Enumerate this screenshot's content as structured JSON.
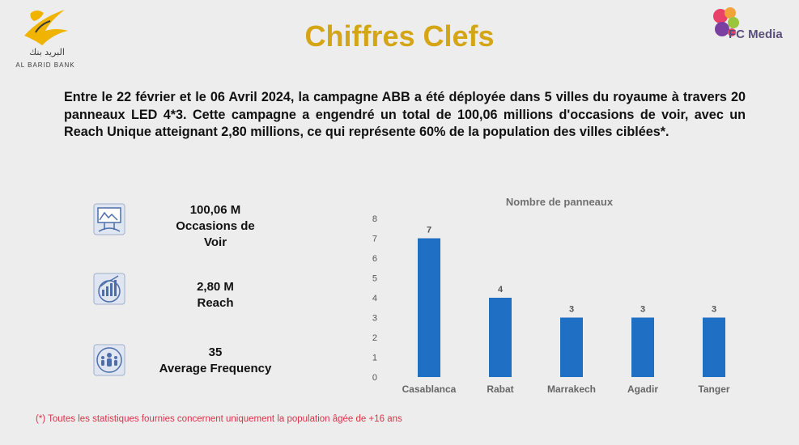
{
  "header": {
    "left_logo": {
      "arabic": "البريد بنك",
      "latin": "AL BARID BANK",
      "icon": "bird-logo-icon",
      "color": "#f0b400"
    },
    "right_logo": {
      "text": "FC Media",
      "icon": "fc-media-logo-icon"
    },
    "title": "Chiffres Clefs",
    "title_color": "#d4a514"
  },
  "intro": "Entre le 22 février et le 06 Avril 2024, la campagne ABB a été déployée dans 5 villes du royaume à travers 20 panneaux LED 4*3. Cette campagne a engendré un total de 100,06 millions d'occasions de voir, avec un Reach Unique atteignant 2,80 millions, ce qui représente 60% de la population des villes ciblées*.",
  "kpis": [
    {
      "icon": "billboard-icon",
      "line1": "100,06 M",
      "line2": "Occasions de",
      "line3": "Voir"
    },
    {
      "icon": "audience-growth-icon",
      "line1": "2,80 M",
      "line2": "Reach"
    },
    {
      "icon": "people-circle-icon",
      "line1": "35",
      "line2": "Average Frequency"
    }
  ],
  "chart_data": {
    "type": "bar",
    "title": "Nombre de panneaux",
    "categories": [
      "Casablanca",
      "Rabat",
      "Marrakech",
      "Agadir",
      "Tanger"
    ],
    "values": [
      7,
      4,
      3,
      3,
      3
    ],
    "ylim": [
      0,
      8
    ],
    "yticks": [
      0,
      1,
      2,
      3,
      4,
      5,
      6,
      7,
      8
    ],
    "bar_color": "#1f6fc5",
    "grid": false,
    "data_labels": true
  },
  "footnote": "(*) Toutes les statistiques fournies concernent uniquement la population âgée de +16 ans"
}
